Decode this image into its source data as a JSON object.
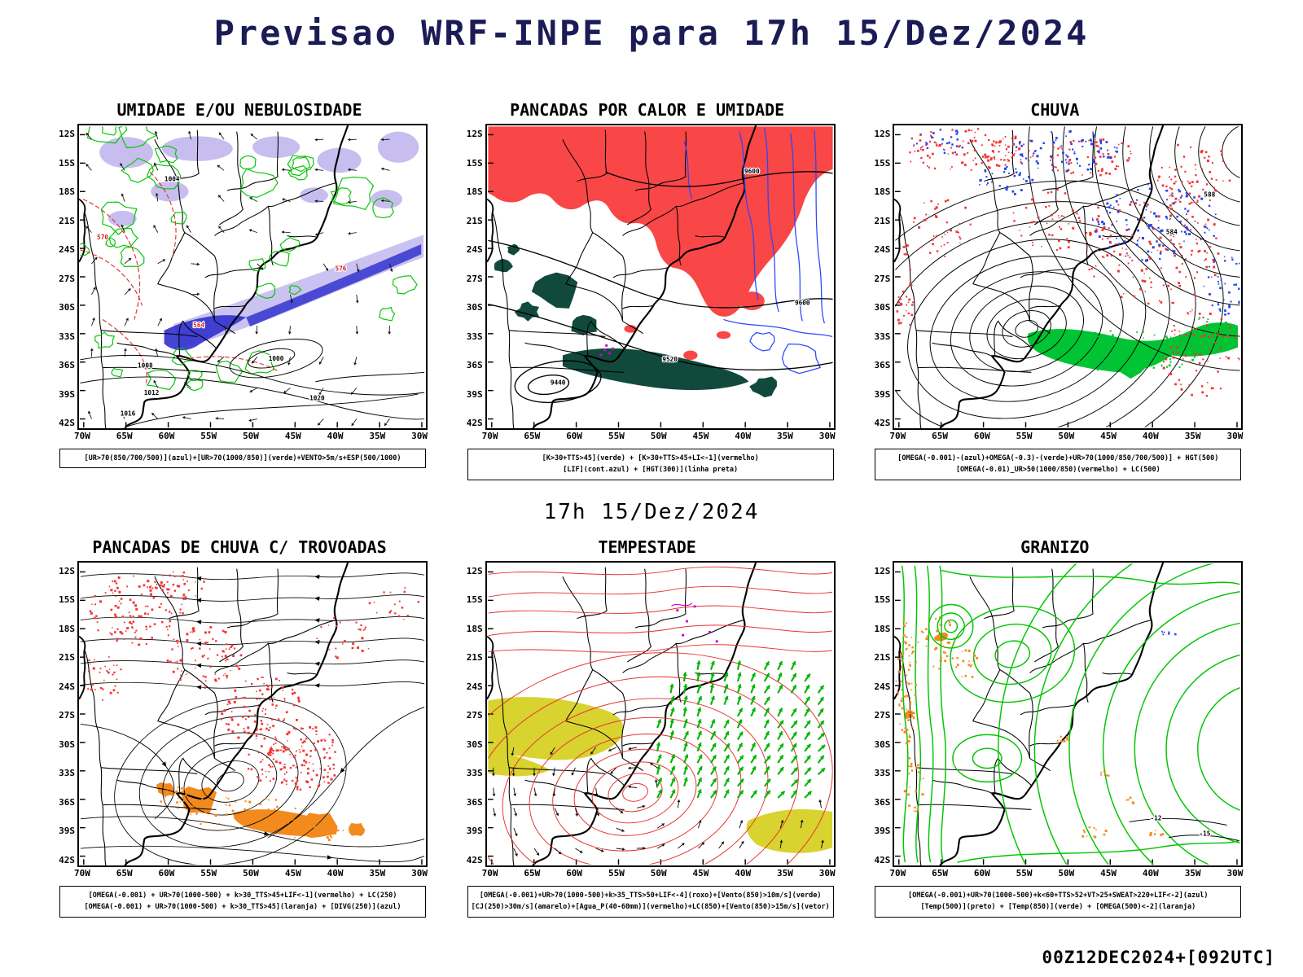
{
  "page": {
    "title": "Previsao WRF-INPE  para 17h 15/Dez/2024",
    "center_label": "17h 15/Dez/2024",
    "footer": "00Z12DEC2024+[092UTC]"
  },
  "axes": {
    "lat_ticks": [
      "12S",
      "15S",
      "18S",
      "21S",
      "24S",
      "27S",
      "30S",
      "33S",
      "36S",
      "39S",
      "42S"
    ],
    "lon_ticks": [
      "70W",
      "65W",
      "60W",
      "55W",
      "50W",
      "45W",
      "40W",
      "35W",
      "30W"
    ]
  },
  "colors": {
    "verde": "#00c400",
    "vermelho": "#f94646",
    "azul": "#2747ff",
    "azul_umidade": "#3434cf",
    "lilas_nebulosidade": "#bdb3ec",
    "verde_escuro": "#114a3d",
    "laranja": "#f28a1e",
    "amarelo": "#d8d32e",
    "roxo": "#cc00cc",
    "preto": "#000000",
    "titulo": "#1b1b55"
  },
  "panels": [
    {
      "title": "UMIDADE E/OU NEBULOSIDADE",
      "caption_lines": [
        "[UR>70(850/700/500)](azul)+[UR>70(1000/850)](verde)+VENTO>5m/s+ESP(500/1000)"
      ],
      "contour_labels": [
        "1000",
        "1004",
        "1008",
        "1012",
        "1016",
        "1020",
        "564",
        "570",
        "576"
      ]
    },
    {
      "title": "PANCADAS POR CALOR E UMIDADE",
      "caption_lines": [
        "[K>30+TTS>45](verde) + [K>30+TTS>45+LI<-1](vermelho)",
        "[LIF](cont.azul) + [HGT(300)](linha preta)"
      ],
      "contour_labels": [
        "9600",
        "9600",
        "9520",
        "9440"
      ]
    },
    {
      "title": "CHUVA",
      "caption_lines": [
        "[OMEGA(-0.001)-(azul)+OMEGA(-0.3)-(verde)+UR>70(1000/850/700/500)] + HGT(500)",
        "[OMEGA(-0.01)_UR>50(1000/850)(vermelho) + LC(500)"
      ],
      "contour_labels": [
        "588",
        "584"
      ]
    },
    {
      "title": "PANCADAS DE CHUVA C/ TROVOADAS",
      "caption_lines": [
        "[OMEGA(-0.001) + UR>70(1000-500) + k>30_TTS>45+LIF<-1](vermelho) + LC(250)",
        "[OMEGA(-0.001) + UR>70(1000-500) + k>30_TTS>45](laranja) + [DIVG(250)](azul)"
      ],
      "contour_labels": []
    },
    {
      "title": "TEMPESTADE",
      "caption_lines": [
        "[OMEGA(-0.001)+UR>70(1000-500)+k>35_TTS>50+LIF<-4](roxo)+[Vento(850)>10m/s](verde)",
        "[CJ(250)>30m/s](amarelo)+[Agua_P(40-60mm)](vermelho)+LC(850)+[Vento(850)>15m/s](vetor)"
      ],
      "contour_labels": []
    },
    {
      "title": "GRANIZO",
      "caption_lines": [
        "[OMEGA(-0.001)+UR>70(1000-500)+k<60+TTS>52+VT>25+SWEAT>220+LIF<-2](azul)",
        "[Temp(500)](preto) + [Temp(850)](verde) + [OMEGA(500)<-2](laranja)"
      ],
      "contour_labels": [
        "-12",
        "-15"
      ]
    }
  ]
}
